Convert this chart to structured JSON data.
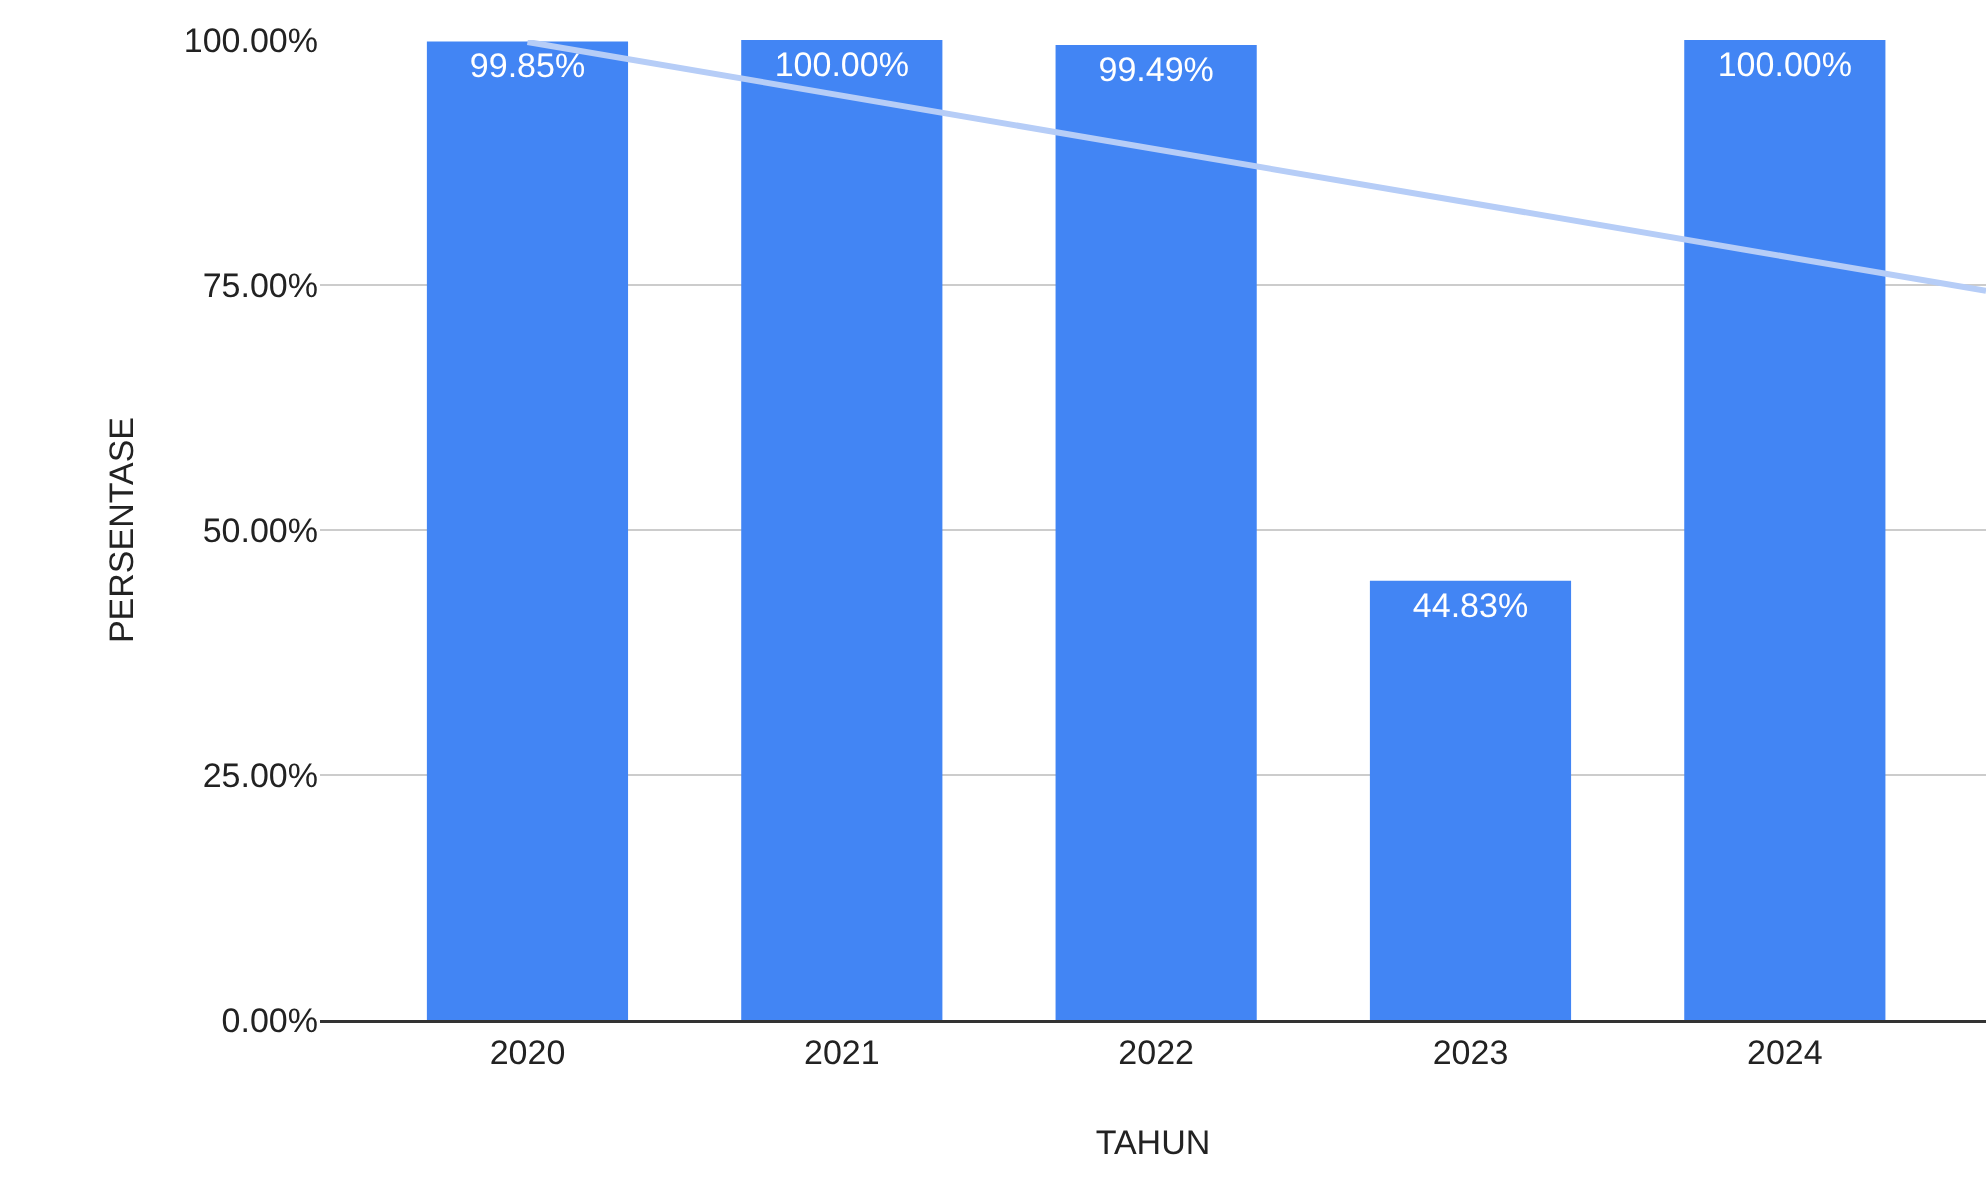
{
  "chart_data": {
    "type": "bar",
    "xlabel": "TAHUN",
    "ylabel": "PERSENTASE",
    "x": [
      2020,
      2021,
      2022,
      2023,
      2024
    ],
    "xlim": [
      2019.34,
      2024.64
    ],
    "xticks": [
      2020,
      2021,
      2022,
      2023,
      2024
    ],
    "ylim": [
      0,
      100
    ],
    "yticks": [
      {
        "value": 0,
        "label": "0.00%"
      },
      {
        "value": 25,
        "label": "25.00%"
      },
      {
        "value": 50,
        "label": "50.00%"
      },
      {
        "value": 75,
        "label": "75.00%"
      },
      {
        "value": 100,
        "label": "100.00%"
      }
    ],
    "grid": "y",
    "legend": false,
    "series": [
      {
        "color": "#4285f4",
        "values": [
          99.85,
          100,
          99.49,
          44.83,
          100
        ],
        "value_labels": [
          "99.85%",
          "100.00%",
          "99.49%",
          "44.83%",
          "100.00%"
        ]
      },
      {
        "type": "line",
        "color": "#b6cdf7",
        "x": [
          2020,
          2024.64
        ],
        "values": [
          99.8,
          74.4
        ]
      }
    ]
  }
}
